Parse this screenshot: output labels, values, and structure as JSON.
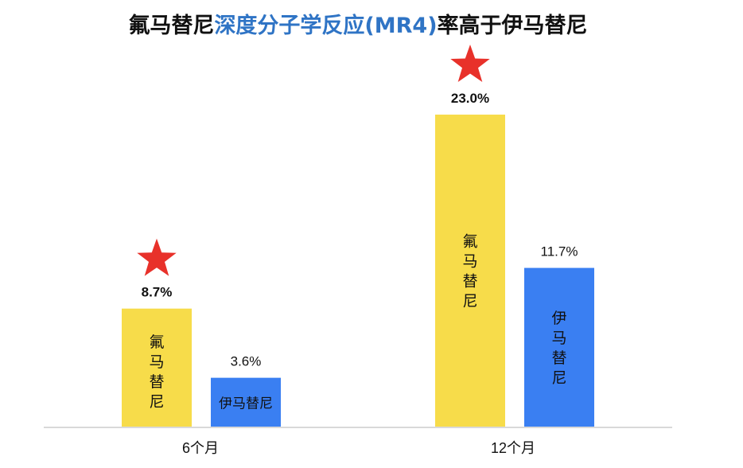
{
  "chart_data": {
    "type": "bar",
    "title": {
      "prefix": "氟马替尼",
      "highlight": "深度分子学反应(MR4)",
      "suffix": "率高于伊马替尼"
    },
    "categories": [
      "6个月",
      "12个月"
    ],
    "series": [
      {
        "name": "氟马替尼",
        "values": [
          8.7,
          23.0
        ],
        "value_labels": [
          "8.7%",
          "23.0%"
        ],
        "color": "#f7dc4a",
        "label_bold": true,
        "star_marker": true
      },
      {
        "name": "伊马替尼",
        "values": [
          3.6,
          11.7
        ],
        "value_labels": [
          "3.6%",
          "11.7%"
        ],
        "color": "#3a7ff2",
        "label_bold": false,
        "star_marker": false
      }
    ],
    "ylim": [
      0,
      25
    ],
    "grid": false,
    "legend": "none",
    "colors": {
      "star": "#e8312a",
      "title_highlight": "#2f74c5",
      "axis": "#d9d9d9"
    }
  }
}
